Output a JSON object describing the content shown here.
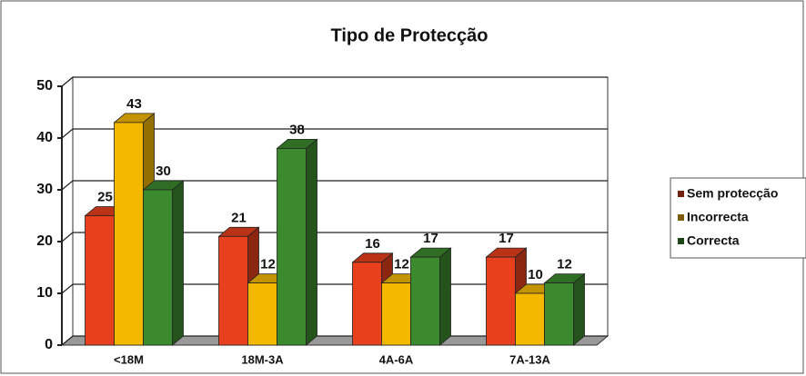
{
  "chart_data": {
    "type": "bar3d",
    "title": "Tipo de Protecção",
    "categories": [
      "<18M",
      "18M-3A",
      "4A-6A",
      "7A-13A"
    ],
    "series": [
      {
        "name": "Sem protecção",
        "color": "#e8401c",
        "values": [
          25,
          21,
          16,
          17
        ]
      },
      {
        "name": "Incorrecta",
        "color": "#f5b800",
        "values": [
          43,
          12,
          12,
          10
        ]
      },
      {
        "name": "Correcta",
        "color": "#3c8a2e",
        "values": [
          30,
          38,
          17,
          12
        ]
      }
    ],
    "ylim": [
      0,
      50
    ],
    "yticks": [
      0,
      10,
      20,
      30,
      40,
      50
    ],
    "grid": true,
    "legend": "right"
  }
}
